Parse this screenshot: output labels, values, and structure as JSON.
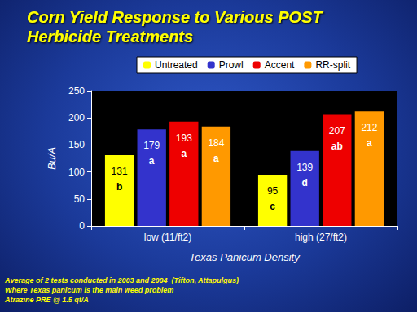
{
  "chart_data": {
    "type": "bar",
    "title": "Corn Yield Response to Various POST Herbicide Treatments",
    "x_label": "Texas Panicum Density",
    "y_label": "Bu/A",
    "categories": [
      "low (11/ft2)",
      "high (27/ft2)"
    ],
    "series": [
      {
        "name": "Untreated",
        "color": "#ffff00",
        "values": [
          131,
          95
        ],
        "letters": [
          "b",
          "c"
        ]
      },
      {
        "name": "Prowl",
        "color": "#3333cc",
        "values": [
          179,
          139
        ],
        "letters": [
          "a",
          "d"
        ]
      },
      {
        "name": "Accent",
        "color": "#ee0000",
        "values": [
          193,
          207
        ],
        "letters": [
          "a",
          "ab"
        ]
      },
      {
        "name": "RR-split",
        "color": "#ff9900",
        "values": [
          184,
          212
        ],
        "letters": [
          "a",
          "a"
        ]
      }
    ],
    "ylim": [
      0,
      250
    ],
    "yticks": [
      0,
      50,
      100,
      150,
      200,
      250
    ],
    "grid": false,
    "legend": "top",
    "data_labels": true,
    "notes": [
      "Average of 2 tests conducted in 2003 and 2004  (Tifton, Attapulgus)",
      "Where Texas panicum is the main weed problem",
      "Atrazine PRE @ 1.5 qt/A"
    ]
  }
}
